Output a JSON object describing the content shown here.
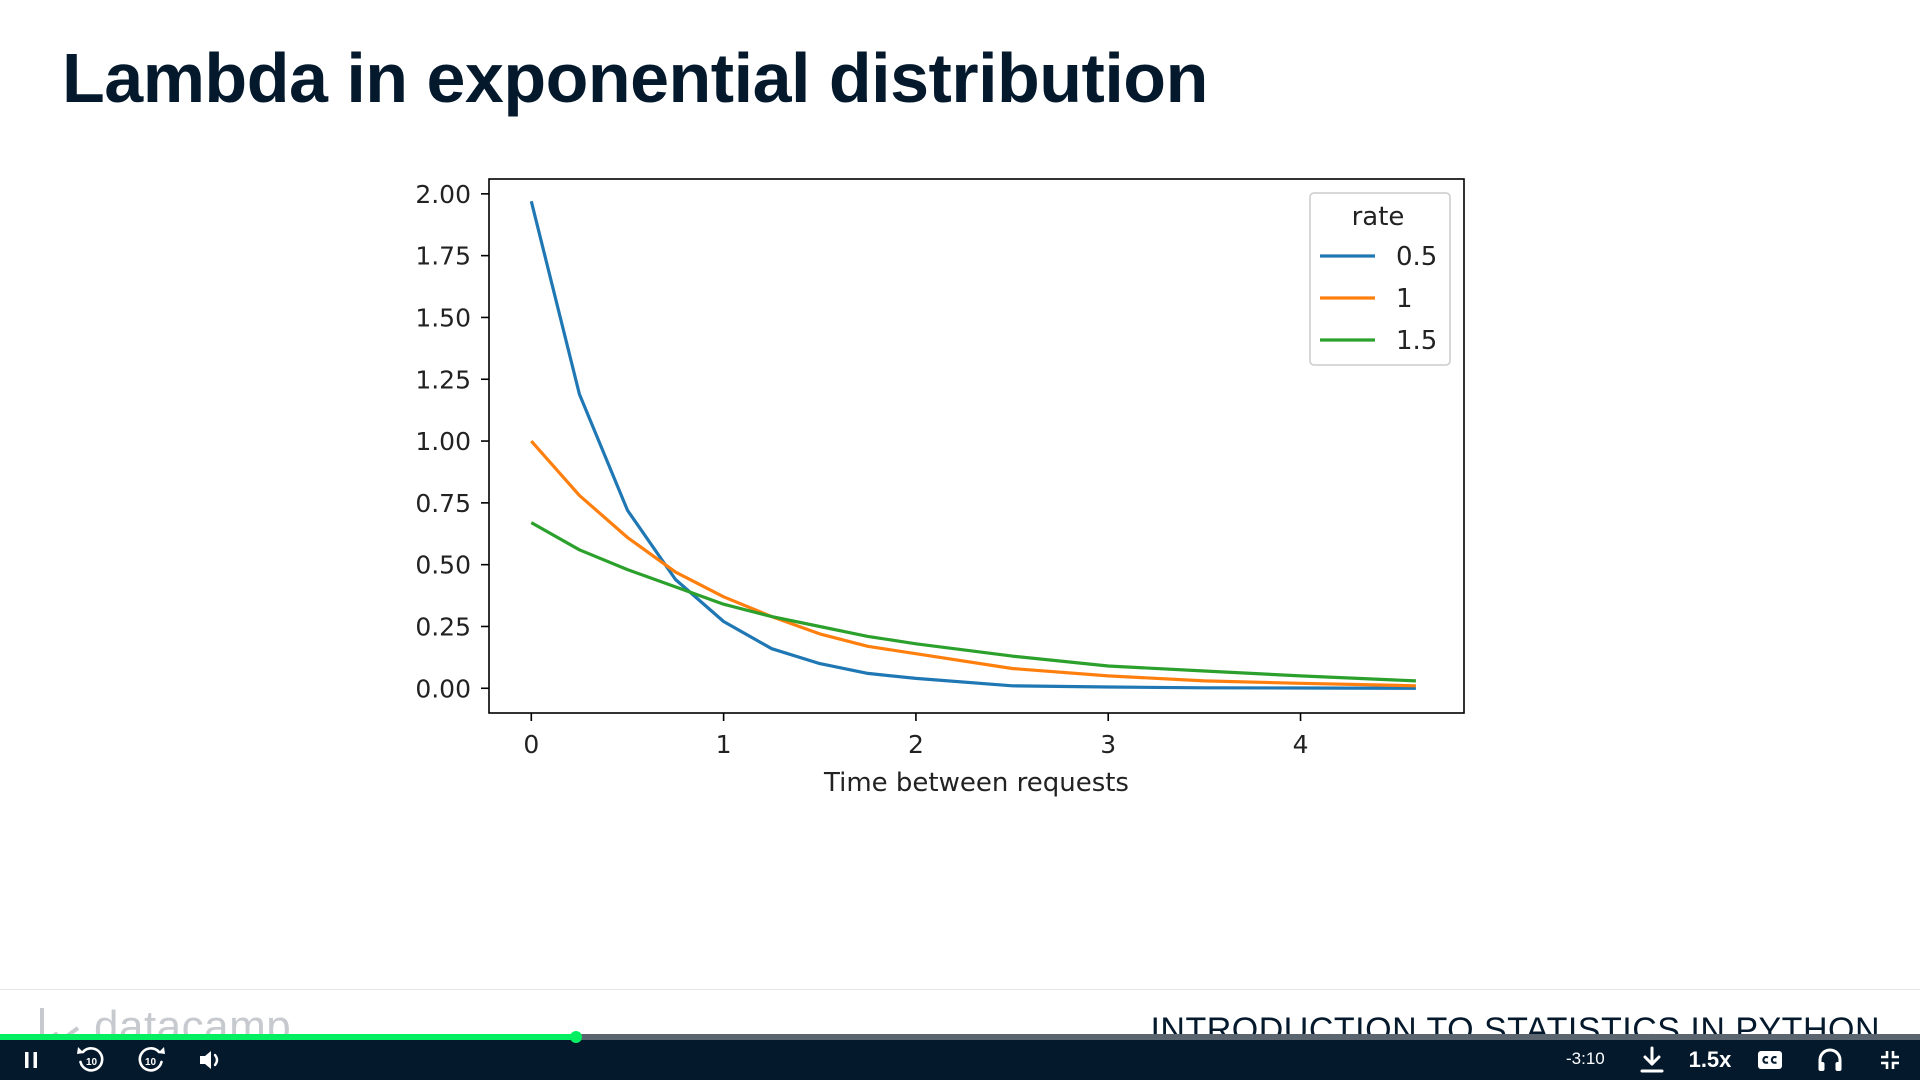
{
  "slide": {
    "title": "Lambda in exponential distribution"
  },
  "chart_data": {
    "type": "line",
    "title": "",
    "xlabel": "Time between requests",
    "ylabel": "",
    "xlim": [
      -0.22,
      4.85
    ],
    "ylim": [
      -0.1,
      2.06
    ],
    "x_ticks": [
      0,
      1,
      2,
      3,
      4
    ],
    "x_tick_labels": [
      "0",
      "1",
      "2",
      "3",
      "4"
    ],
    "y_ticks": [
      0.0,
      0.25,
      0.5,
      0.75,
      1.0,
      1.25,
      1.5,
      1.75,
      2.0
    ],
    "y_tick_labels": [
      "0.00",
      "0.25",
      "0.50",
      "0.75",
      "1.00",
      "1.25",
      "1.50",
      "1.75",
      "2.00"
    ],
    "grid": false,
    "legend": {
      "title": "rate",
      "placement": "top-right"
    },
    "series": [
      {
        "name": "0.5",
        "color": "#1f77b4",
        "x": [
          0,
          0.25,
          0.5,
          0.75,
          1.0,
          1.25,
          1.5,
          1.75,
          2.0,
          2.5,
          3.0,
          3.5,
          4.0,
          4.6
        ],
        "y": [
          1.97,
          1.19,
          0.72,
          0.44,
          0.27,
          0.16,
          0.1,
          0.06,
          0.04,
          0.01,
          0.005,
          0.002,
          0.001,
          0.0
        ]
      },
      {
        "name": "1",
        "color": "#ff7f0e",
        "x": [
          0,
          0.25,
          0.5,
          0.75,
          1.0,
          1.25,
          1.5,
          1.75,
          2.0,
          2.5,
          3.0,
          3.5,
          4.0,
          4.6
        ],
        "y": [
          1.0,
          0.78,
          0.61,
          0.47,
          0.37,
          0.29,
          0.22,
          0.17,
          0.14,
          0.08,
          0.05,
          0.03,
          0.02,
          0.01
        ]
      },
      {
        "name": "1.5",
        "color": "#2ca02c",
        "x": [
          0,
          0.25,
          0.5,
          0.75,
          1.0,
          1.25,
          1.5,
          1.75,
          2.0,
          2.5,
          3.0,
          3.5,
          4.0,
          4.6
        ],
        "y": [
          0.67,
          0.56,
          0.48,
          0.41,
          0.34,
          0.29,
          0.25,
          0.21,
          0.18,
          0.13,
          0.09,
          0.07,
          0.05,
          0.03
        ]
      }
    ]
  },
  "footer": {
    "logo_text": "datacamp",
    "course_title": "INTRODUCTION TO STATISTICS IN PYTHON"
  },
  "player": {
    "progress": 0.3,
    "time_remaining": "-3:10",
    "speed": "1.5x",
    "rewind_seconds": "10",
    "forward_seconds": "10",
    "colors": {
      "bar": "#05192d",
      "progress": "#03ef62",
      "track": "#5b6570"
    },
    "icons": [
      "pause-icon",
      "rewind-10-icon",
      "forward-10-icon",
      "volume-icon",
      "download-icon",
      "closed-captions-icon",
      "headphones-icon",
      "exit-fullscreen-icon"
    ]
  }
}
